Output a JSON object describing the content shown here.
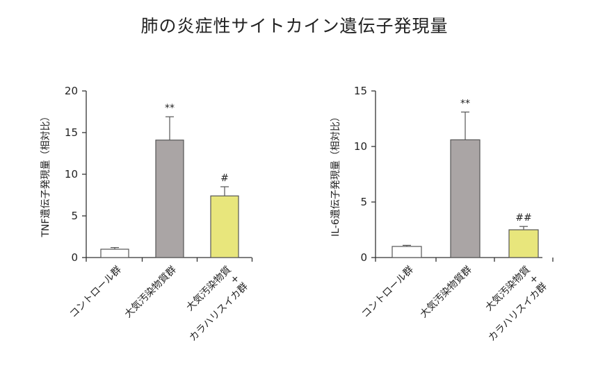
{
  "figure_title": "肺の炎症性サイトカイン遺伝子発現量",
  "chart_data": [
    {
      "type": "bar",
      "ylabel": "TNF遺伝子発現量（相対比）",
      "ylim": [
        0,
        20
      ],
      "yticks": [
        0,
        5,
        10,
        15,
        20
      ],
      "categories": [
        [
          "コントロール群"
        ],
        [
          "大気汚染物質群"
        ],
        [
          "大気汚染物質",
          "+",
          "カラハリスイカ群"
        ]
      ],
      "values": [
        1.0,
        14.1,
        7.4
      ],
      "errors": [
        0.2,
        2.8,
        1.1
      ],
      "annotations": [
        "",
        "**",
        "#"
      ],
      "colors": [
        "#ffffff",
        "#aaa5a5",
        "#e8e67c"
      ]
    },
    {
      "type": "bar",
      "ylabel": "IL-6遺伝子発現量（相対比）",
      "ylim": [
        0,
        15
      ],
      "yticks": [
        0,
        5,
        10,
        15
      ],
      "categories": [
        [
          "コントロール群"
        ],
        [
          "大気汚染物質群"
        ],
        [
          "大気汚染物質",
          "+",
          "カラハリスイカ群"
        ]
      ],
      "values": [
        1.0,
        10.6,
        2.5
      ],
      "errors": [
        0.1,
        2.5,
        0.3
      ],
      "annotations": [
        "",
        "**",
        "##"
      ],
      "colors": [
        "#ffffff",
        "#aaa5a5",
        "#e8e67c"
      ]
    }
  ]
}
